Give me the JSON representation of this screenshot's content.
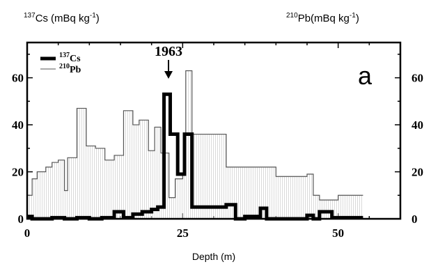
{
  "chart_data": {
    "type": "line",
    "title": "",
    "xlabel": "Depth (m)",
    "ylabel_left": {
      "iso": "137",
      "el": "Cs",
      "unit": "(mBq kg",
      "exp": "-1",
      "close": ")"
    },
    "ylabel_right": {
      "iso": "210",
      "el": "Pb",
      "unit": "(mBq kg",
      "exp": "-1",
      "close": ")"
    },
    "xlim": [
      0,
      60
    ],
    "ylim": [
      0,
      75
    ],
    "x_ticks": [
      "0",
      "25",
      "50"
    ],
    "y_ticks_left": [
      "0",
      "20",
      "40",
      "60"
    ],
    "y_ticks_right": [
      "0",
      "20",
      "40",
      "60"
    ],
    "panel_label": "a",
    "annotation": {
      "text": "1963",
      "x": 22.5
    },
    "legend": {
      "placement": "top-left",
      "entries": [
        {
          "iso": "137",
          "el": "Cs"
        },
        {
          "iso": "210",
          "el": "Pb"
        }
      ]
    },
    "series": [
      {
        "key": "cs137",
        "style": "thick",
        "color": "#000000",
        "steps": [
          [
            0,
            1
          ],
          [
            0.8,
            0
          ],
          [
            4,
            0.5
          ],
          [
            6,
            0
          ],
          [
            8,
            0.5
          ],
          [
            10,
            0
          ],
          [
            12,
            0.5
          ],
          [
            14,
            3
          ],
          [
            15.5,
            0.5
          ],
          [
            17,
            2
          ],
          [
            18.5,
            3
          ],
          [
            20,
            4
          ],
          [
            21,
            5
          ],
          [
            22,
            53
          ],
          [
            23,
            36
          ],
          [
            24.2,
            19
          ],
          [
            25.3,
            36
          ],
          [
            26.5,
            5
          ],
          [
            32,
            6
          ],
          [
            33.5,
            0
          ],
          [
            35,
            1
          ],
          [
            37.5,
            4.5
          ],
          [
            38.5,
            0
          ],
          [
            45,
            1.5
          ],
          [
            46,
            0
          ],
          [
            47,
            3
          ],
          [
            49,
            0.5
          ],
          [
            54,
            0.5
          ]
        ],
        "end_x": 54
      },
      {
        "key": "pb210",
        "style": "thin-hatched",
        "color": "#555555",
        "steps": [
          [
            0,
            10
          ],
          [
            0.8,
            17
          ],
          [
            1.6,
            20
          ],
          [
            3,
            22
          ],
          [
            4,
            24
          ],
          [
            5,
            25
          ],
          [
            6,
            12
          ],
          [
            6.5,
            26
          ],
          [
            8,
            47
          ],
          [
            9.5,
            31
          ],
          [
            11,
            30
          ],
          [
            12.5,
            25
          ],
          [
            14,
            27
          ],
          [
            15.5,
            46
          ],
          [
            17,
            40
          ],
          [
            18,
            42
          ],
          [
            19.5,
            29
          ],
          [
            20.5,
            39
          ],
          [
            21.5,
            28
          ],
          [
            22.8,
            9
          ],
          [
            23.8,
            17
          ],
          [
            25,
            19
          ],
          [
            25.5,
            63
          ],
          [
            26.5,
            36
          ],
          [
            32,
            22
          ],
          [
            40,
            18
          ],
          [
            45,
            19
          ],
          [
            46,
            10
          ],
          [
            47,
            8
          ],
          [
            50,
            10
          ],
          [
            54,
            10
          ]
        ],
        "end_x": 54
      }
    ]
  }
}
